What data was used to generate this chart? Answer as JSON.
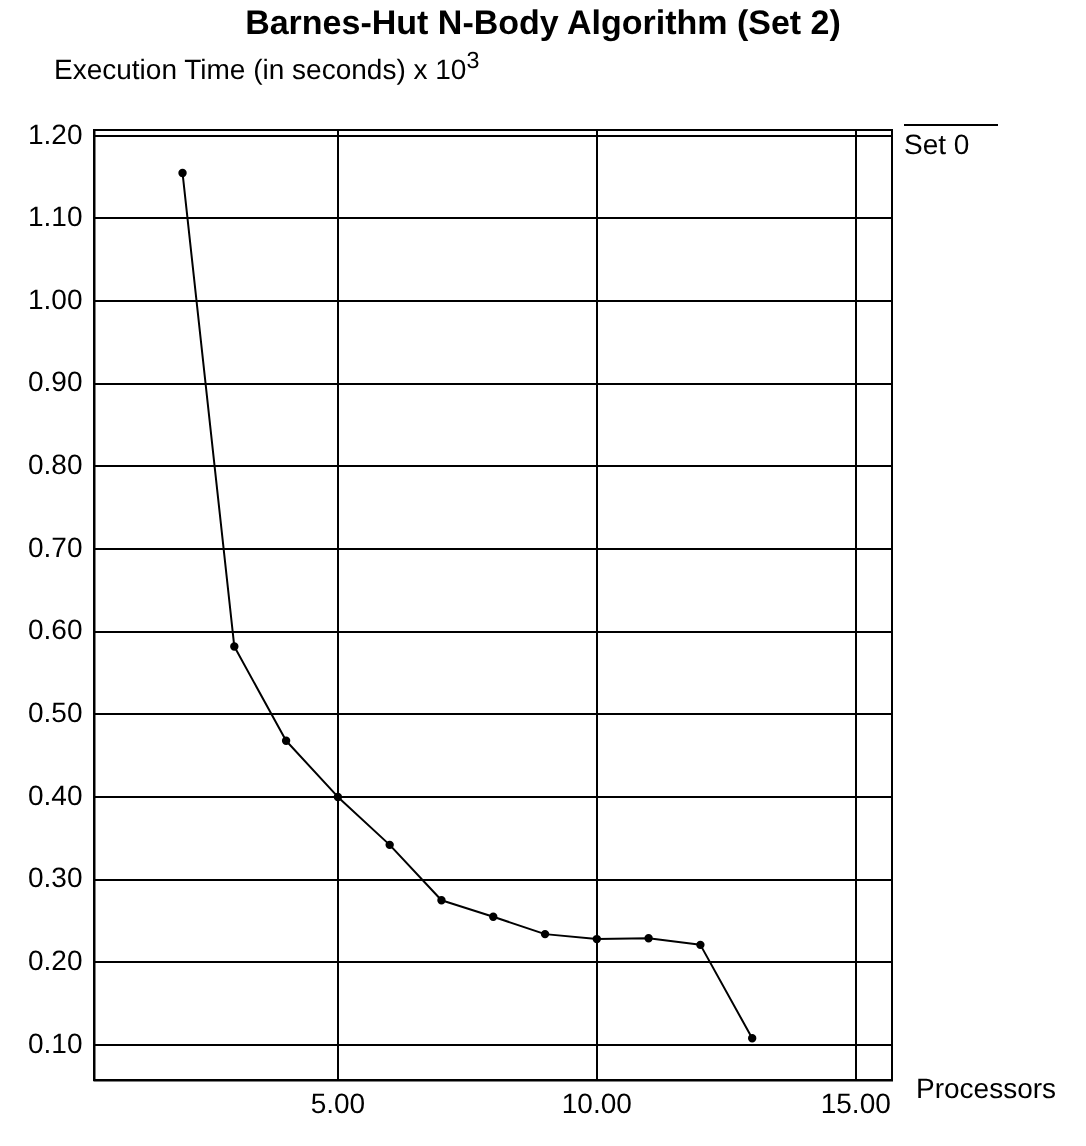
{
  "chart_data": {
    "type": "line",
    "title": "Barnes-Hut N-Body Algorithm (Set 2)",
    "ylabel": "Execution Time (in seconds) x 10$^{3}$",
    "xlabel": "Processors",
    "x": [
      2,
      3,
      4,
      5,
      6,
      7,
      8,
      9,
      10,
      11,
      12,
      13
    ],
    "series": [
      {
        "name": "Set 0",
        "color": "#000000",
        "values": [
          1.155,
          0.582,
          0.468,
          0.4,
          0.342,
          0.275,
          0.255,
          0.234,
          0.228,
          0.229,
          0.221,
          0.108
        ]
      }
    ],
    "xlim": [
      0.3,
      15.7
    ],
    "xticks": [
      {
        "value": 5,
        "label": "5.00"
      },
      {
        "value": 10,
        "label": "10.00"
      },
      {
        "value": 15,
        "label": "15.00"
      }
    ],
    "ylim": [
      0.057,
      1.207
    ],
    "yticks": [
      {
        "value": 0.1,
        "label": "0.10"
      },
      {
        "value": 0.2,
        "label": "0.20"
      },
      {
        "value": 0.3,
        "label": "0.30"
      },
      {
        "value": 0.4,
        "label": "0.40"
      },
      {
        "value": 0.5,
        "label": "0.50"
      },
      {
        "value": 0.6,
        "label": "0.60"
      },
      {
        "value": 0.7,
        "label": "0.70"
      },
      {
        "value": 0.8,
        "label": "0.80"
      },
      {
        "value": 0.9,
        "label": "0.90"
      },
      {
        "value": 1.0,
        "label": "1.00"
      },
      {
        "value": 1.1,
        "label": "1.10"
      },
      {
        "value": 1.2,
        "label": "1.20"
      }
    ],
    "grid": true,
    "legend": "top right",
    "marker": "circle",
    "line_style": "solid"
  }
}
